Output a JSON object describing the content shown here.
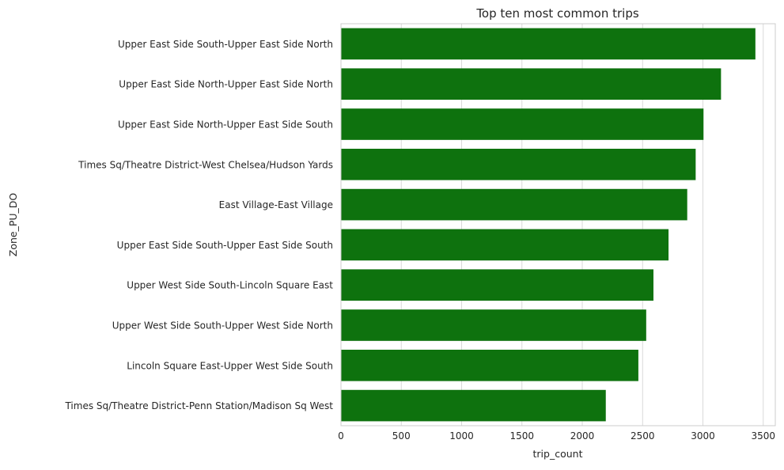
{
  "chart_data": {
    "type": "bar",
    "orientation": "horizontal",
    "title": "Top ten most common trips",
    "xlabel": "trip_count",
    "ylabel": "Zone_PU_DO",
    "categories": [
      "Upper East Side South-Upper East Side North",
      "Upper East Side North-Upper East Side North",
      "Upper East Side North-Upper East Side South",
      "Times Sq/Theatre District-West Chelsea/Hudson Yards",
      "East Village-East Village",
      "Upper East Side South-Upper East Side South",
      "Upper West Side South-Lincoln Square East",
      "Upper West Side South-Upper West Side North",
      "Lincoln Square East-Upper West Side South",
      "Times Sq/Theatre District-Penn Station/Madison Sq West"
    ],
    "values": [
      3435,
      3150,
      3005,
      2940,
      2870,
      2715,
      2590,
      2530,
      2465,
      2195
    ],
    "xlim": [
      0,
      3600
    ],
    "xticks": [
      0,
      500,
      1000,
      1500,
      2000,
      2500,
      3000,
      3500
    ],
    "grid": true,
    "bar_color": "#0e720e",
    "grid_color": "#d9d9d9",
    "spine_color": "#cccccc"
  }
}
